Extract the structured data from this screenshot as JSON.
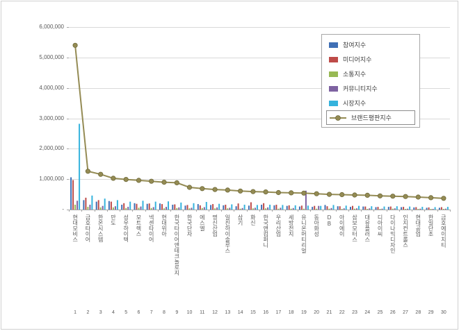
{
  "frame": {
    "background": "#ffffff",
    "border_color": "#d0d0d0",
    "gridline_color": "#d9d9d9",
    "axis_color": "#a6a6a6",
    "tick_text_color": "#595959"
  },
  "chart_data": {
    "type": "bar",
    "title": "",
    "xlabel": "",
    "ylabel": "",
    "ylim": [
      0,
      6000000
    ],
    "grid": true,
    "legend_position": "inside-top-right",
    "y_ticks": [
      "-",
      "1,000,000",
      "2,000,000",
      "3,000,000",
      "4,000,000",
      "5,000,000",
      "6,000,000"
    ],
    "categories": [
      "현대모비스",
      "금호타이어",
      "한온시스템",
      "만도",
      "성우하이텍",
      "모트렉스",
      "넥센타이어",
      "현대위아",
      "한국타이어앤테크놀로지",
      "한국단자",
      "에스엘",
      "명신산업",
      "일진하이솔루스",
      "삼기",
      "화신",
      "한국앤컴퍼니",
      "우리산업",
      "세방전지",
      "유니온머티리얼",
      "동아화성",
      "DB",
      "아이에이",
      "삼보모터스",
      "대유플러스",
      "디아이씨",
      "다이나믹디자인",
      "인지컨트롤스",
      "현대공업",
      "한일단조",
      "금호에이치티"
    ],
    "ranks": [
      "1",
      "2",
      "3",
      "4",
      "5",
      "6",
      "7",
      "8",
      "9",
      "10",
      "11",
      "12",
      "13",
      "14",
      "15",
      "16",
      "17",
      "18",
      "19",
      "20",
      "21",
      "22",
      "23",
      "24",
      "25",
      "26",
      "27",
      "28",
      "29",
      "30"
    ],
    "series": [
      {
        "name": "참여지수",
        "type": "bar",
        "color": "#3f6fb5",
        "values": [
          1060000,
          310000,
          260000,
          280000,
          160000,
          210000,
          190000,
          200000,
          160000,
          130000,
          180000,
          150000,
          140000,
          110000,
          130000,
          160000,
          140000,
          120000,
          100000,
          90000,
          150000,
          110000,
          90000,
          100000,
          80000,
          90000,
          80000,
          70000,
          60000,
          60000
        ]
      },
      {
        "name": "미디어지수",
        "type": "bar",
        "color": "#be4b48",
        "values": [
          970000,
          390000,
          310000,
          260000,
          210000,
          190000,
          200000,
          180000,
          170000,
          150000,
          140000,
          180000,
          160000,
          200000,
          240000,
          210000,
          160000,
          140000,
          130000,
          120000,
          110000,
          110000,
          120000,
          100000,
          90000,
          100000,
          90000,
          80000,
          70000,
          80000
        ]
      },
      {
        "name": "소통지수",
        "type": "bar",
        "color": "#98b954",
        "values": [
          160000,
          90000,
          70000,
          70000,
          50000,
          60000,
          50000,
          40000,
          50000,
          40000,
          50000,
          40000,
          40000,
          30000,
          40000,
          40000,
          30000,
          30000,
          30000,
          30000,
          30000,
          20000,
          30000,
          20000,
          20000,
          30000,
          20000,
          20000,
          20000,
          20000
        ]
      },
      {
        "name": "커뮤니티지수",
        "type": "bar",
        "color": "#7e62a1",
        "values": [
          290000,
          160000,
          120000,
          110000,
          90000,
          100000,
          80000,
          90000,
          70000,
          60000,
          80000,
          70000,
          60000,
          50000,
          60000,
          70000,
          60000,
          50000,
          620000,
          120000,
          50000,
          40000,
          40000,
          40000,
          30000,
          40000,
          30000,
          30000,
          20000,
          30000
        ]
      },
      {
        "name": "시장지수",
        "type": "bar",
        "color": "#35b3dd",
        "values": [
          2820000,
          460000,
          360000,
          310000,
          260000,
          290000,
          260000,
          270000,
          230000,
          210000,
          250000,
          190000,
          170000,
          160000,
          150000,
          160000,
          150000,
          140000,
          130000,
          120000,
          150000,
          130000,
          120000,
          110000,
          100000,
          110000,
          100000,
          90000,
          80000,
          90000
        ]
      },
      {
        "name": "브랜드평판지수",
        "type": "line",
        "color": "#948b54",
        "values": [
          5400000,
          1260000,
          1160000,
          1030000,
          990000,
          960000,
          930000,
          900000,
          880000,
          730000,
          690000,
          660000,
          640000,
          610000,
          590000,
          580000,
          560000,
          550000,
          540000,
          520000,
          500000,
          490000,
          480000,
          470000,
          450000,
          440000,
          430000,
          410000,
          390000,
          370000
        ]
      }
    ]
  }
}
